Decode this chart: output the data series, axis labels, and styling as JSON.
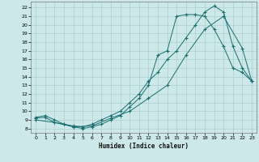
{
  "xlabel": "Humidex (Indice chaleur)",
  "bg_color": "#cce8e8",
  "grid_color": "#aacfcf",
  "line_color": "#1a6e6e",
  "xlim": [
    -0.5,
    23.5
  ],
  "ylim": [
    7.5,
    22.7
  ],
  "xticks": [
    0,
    1,
    2,
    3,
    4,
    5,
    6,
    7,
    8,
    9,
    10,
    11,
    12,
    13,
    14,
    15,
    16,
    17,
    18,
    19,
    20,
    21,
    22,
    23
  ],
  "yticks": [
    8,
    9,
    10,
    11,
    12,
    13,
    14,
    15,
    16,
    17,
    18,
    19,
    20,
    21,
    22
  ],
  "line1_x": [
    0,
    1,
    2,
    3,
    4,
    5,
    6,
    7,
    8,
    9,
    10,
    11,
    12,
    13,
    14,
    15,
    16,
    17,
    18,
    19,
    20,
    21,
    22,
    23
  ],
  "line1_y": [
    9.3,
    9.5,
    9.0,
    8.5,
    8.2,
    8.0,
    8.2,
    8.5,
    9.0,
    9.5,
    10.5,
    11.5,
    13.0,
    16.5,
    17.0,
    21.0,
    21.2,
    21.2,
    21.0,
    19.5,
    17.5,
    15.0,
    14.5,
    13.5
  ],
  "line2_x": [
    0,
    1,
    2,
    3,
    4,
    5,
    6,
    7,
    8,
    9,
    10,
    11,
    12,
    13,
    14,
    15,
    16,
    17,
    18,
    19,
    20,
    21,
    22,
    23
  ],
  "line2_y": [
    9.2,
    9.3,
    8.7,
    8.5,
    8.3,
    8.2,
    8.5,
    9.0,
    9.5,
    10.0,
    11.0,
    12.0,
    13.5,
    14.5,
    16.0,
    17.0,
    18.5,
    20.0,
    21.5,
    22.2,
    21.5,
    17.5,
    15.0,
    13.5
  ],
  "line3_x": [
    0,
    2,
    4,
    6,
    8,
    10,
    12,
    14,
    16,
    18,
    20,
    22,
    23
  ],
  "line3_y": [
    9.0,
    8.7,
    8.2,
    8.3,
    9.2,
    10.0,
    11.5,
    13.0,
    16.5,
    19.5,
    21.0,
    17.3,
    13.5
  ]
}
